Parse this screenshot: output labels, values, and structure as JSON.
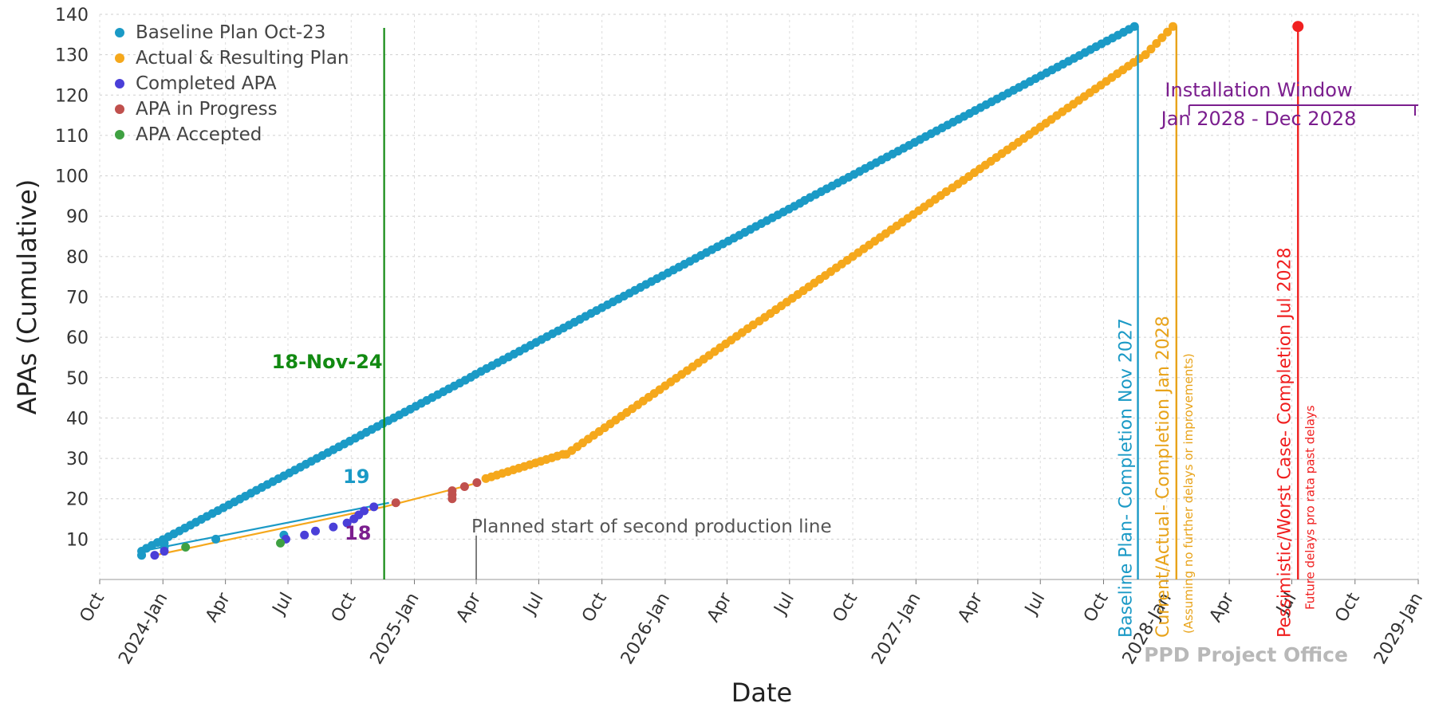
{
  "chart_data": {
    "type": "scatter",
    "xlabel": "Date",
    "ylabel": "APAs (Cumulative)",
    "x_range": [
      "2023-10-01",
      "2029-01-01"
    ],
    "ylim": [
      0,
      140
    ],
    "y_ticks": [
      10,
      20,
      30,
      40,
      50,
      60,
      70,
      80,
      90,
      100,
      110,
      120,
      130,
      140
    ],
    "x_ticks": [
      {
        "date": "2023-10-01",
        "label": "Oct"
      },
      {
        "date": "2024-01-01",
        "label": "2024-Jan"
      },
      {
        "date": "2024-04-01",
        "label": "Apr"
      },
      {
        "date": "2024-07-01",
        "label": "Jul"
      },
      {
        "date": "2024-10-01",
        "label": "Oct"
      },
      {
        "date": "2025-01-01",
        "label": "2025-Jan"
      },
      {
        "date": "2025-04-01",
        "label": "Apr"
      },
      {
        "date": "2025-07-01",
        "label": "Jul"
      },
      {
        "date": "2025-10-01",
        "label": "Oct"
      },
      {
        "date": "2026-01-01",
        "label": "2026-Jan"
      },
      {
        "date": "2026-04-01",
        "label": "Apr"
      },
      {
        "date": "2026-07-01",
        "label": "Jul"
      },
      {
        "date": "2026-10-01",
        "label": "Oct"
      },
      {
        "date": "2027-01-01",
        "label": "2027-Jan"
      },
      {
        "date": "2027-04-01",
        "label": "Apr"
      },
      {
        "date": "2027-07-01",
        "label": "Jul"
      },
      {
        "date": "2027-10-01",
        "label": "Oct"
      },
      {
        "date": "2028-01-01",
        "label": "2028-Jan"
      },
      {
        "date": "2028-04-01",
        "label": "Apr"
      },
      {
        "date": "2028-07-01",
        "label": "Jul"
      },
      {
        "date": "2028-10-01",
        "label": "Oct"
      },
      {
        "date": "2029-01-01",
        "label": "2029-Jan"
      }
    ],
    "grid": true,
    "legend_position": "top-left",
    "series": [
      {
        "name": "Baseline Plan Oct-23",
        "color": "#1B9AC6",
        "segments": [
          {
            "from": [
              "2023-12-01",
              7
            ],
            "to": [
              "2027-11-15",
              137
            ],
            "step_days": 8
          },
          {
            "from": [
              "2023-12-01",
              6
            ],
            "to": [
              "2023-12-01",
              6
            ],
            "step_days": 0
          },
          {
            "from": [
              "2024-01-03",
              8
            ],
            "to": [
              "2024-01-03",
              9
            ],
            "step_days": 0
          }
        ],
        "points_extra": [
          [
            "2024-03-18",
            10
          ],
          [
            "2024-06-25",
            11
          ]
        ]
      },
      {
        "name": "Actual & Resulting Plan",
        "color": "#F5A81C",
        "segments": [
          {
            "from": [
              "2025-04-15",
              25
            ],
            "to": [
              "2025-08-05",
              31
            ],
            "step_days": 8
          },
          {
            "from": [
              "2025-08-10",
              31
            ],
            "to": [
              "2027-12-01",
              130
            ],
            "step_days": 8
          },
          {
            "from": [
              "2027-12-01",
              130
            ],
            "to": [
              "2028-01-10",
              137
            ],
            "step_days": 8
          }
        ]
      },
      {
        "name": "Completed APA",
        "color": "#4A3FD8",
        "points": [
          [
            "2023-12-20",
            6
          ],
          [
            "2024-01-03",
            7
          ],
          [
            "2024-06-28",
            10
          ],
          [
            "2024-07-25",
            11
          ],
          [
            "2024-08-10",
            12
          ],
          [
            "2024-09-05",
            13
          ],
          [
            "2024-09-25",
            14
          ],
          [
            "2024-10-05",
            15
          ],
          [
            "2024-10-12",
            16
          ],
          [
            "2024-10-20",
            17
          ],
          [
            "2024-11-03",
            18
          ]
        ]
      },
      {
        "name": "APA in Progress",
        "color": "#C0504D",
        "points": [
          [
            "2024-12-05",
            19
          ],
          [
            "2025-02-25",
            20
          ],
          [
            "2025-02-25",
            21
          ],
          [
            "2025-02-25",
            22
          ],
          [
            "2025-03-15",
            23
          ],
          [
            "2025-04-02",
            24
          ]
        ]
      },
      {
        "name": "APA Accepted",
        "color": "#3FA142",
        "points": [
          [
            "2024-02-03",
            8
          ],
          [
            "2024-06-20",
            9
          ]
        ]
      }
    ],
    "connector_lines": [
      {
        "color": "#1B9AC6",
        "from": [
          "2023-12-01",
          7
        ],
        "to": [
          "2024-11-25",
          19
        ]
      },
      {
        "color": "#F5A81C",
        "from": [
          "2023-12-20",
          6
        ],
        "to": [
          "2024-11-18",
          18
        ]
      },
      {
        "color": "#F5A81C",
        "from": [
          "2024-11-18",
          18
        ],
        "to": [
          "2025-04-05",
          24
        ]
      }
    ],
    "annotations": {
      "marker_18nov": {
        "label": "18-Nov-24",
        "date": "2024-11-18",
        "color": "#128A12"
      },
      "label_19": {
        "text": "19",
        "color": "#1B9AC6"
      },
      "label_18": {
        "text": "18",
        "color": "#7B1E8E"
      },
      "second_line": {
        "text": "Planned start of second production line",
        "date": "2025-04-01",
        "color": "#555555"
      },
      "baseline_completion": {
        "text": "Baseline Plan- Completion Nov 2027",
        "date": "2027-11-20",
        "color": "#1B9AC6"
      },
      "current_completion": {
        "text": "Current/Actual- Completion Jan 2028",
        "sub": "(Assuming no further delays or improvements)",
        "date": "2028-01-15",
        "color": "#E8A31A"
      },
      "pessimistic_completion": {
        "text": "Pessimistic/Worst Case- Completion Jul 2028",
        "sub": "Future delays pro rata past delays",
        "date": "2028-07-10",
        "value": 137,
        "color": "#F02020"
      },
      "install_window": {
        "title": "Installation Window",
        "range": "Jan 2028 - Dec 2028",
        "color": "#7B1E8E"
      },
      "watermark": "PPD Project Office"
    }
  }
}
